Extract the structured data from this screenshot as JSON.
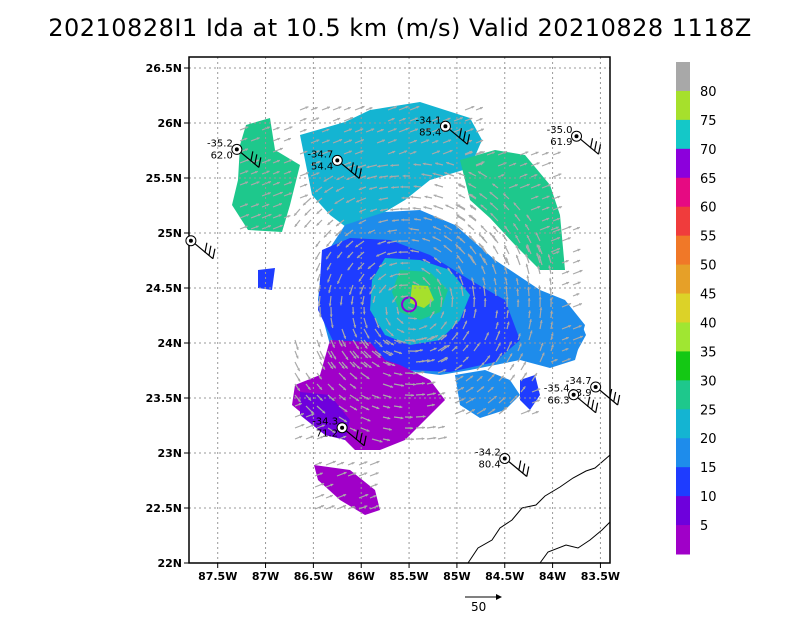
{
  "title": "20210828I1 Ida at 10.5 km (m/s) Valid 20210828  1118Z",
  "axes": {
    "lat_labels": [
      "26.5N",
      "26N",
      "25.5N",
      "25N",
      "24.5N",
      "24N",
      "23.5N",
      "23N",
      "22.5N",
      "22N"
    ],
    "lat_values": [
      26.5,
      26,
      25.5,
      25,
      24.5,
      24,
      23.5,
      23,
      22.5,
      22
    ],
    "lon_labels": [
      "87.5W",
      "87W",
      "86.5W",
      "86W",
      "85.5W",
      "85W",
      "84.5W",
      "84W",
      "83.5W"
    ],
    "lon_values": [
      -87.5,
      -87,
      -86.5,
      -86,
      -85.5,
      -85,
      -84.5,
      -84,
      -83.5
    ],
    "lon_range": [
      -87.8,
      -83.4
    ],
    "lat_range": [
      22,
      26.6
    ],
    "grid": true
  },
  "colorbar": {
    "labels": [
      "80",
      "75",
      "70",
      "65",
      "60",
      "55",
      "50",
      "45",
      "40",
      "35",
      "30",
      "25",
      "20",
      "15",
      "10",
      "5"
    ],
    "colors": [
      "#a8a8a8",
      "#a6e02c",
      "#14c8c8",
      "#8c00dc",
      "#e60a82",
      "#f03c3c",
      "#f07828",
      "#e6a028",
      "#dcd228",
      "#a0e632",
      "#14c814",
      "#1ec88c",
      "#14b4d2",
      "#1e8ceb",
      "#1e3cff",
      "#6e00dc",
      "#a000c8"
    ]
  },
  "vector_scale": {
    "label": "50"
  },
  "chart_data": {
    "type": "map",
    "title": "20210828I1 Ida at 10.5 km (m/s) Valid 20210828  1118Z",
    "field": "wind speed at 10.5 km (m/s)",
    "center_approx": {
      "lon": -85.5,
      "lat": 24.35
    },
    "observations": [
      {
        "lon": -87.3,
        "lat": 25.76,
        "temp": "-35.2",
        "value": "62.0"
      },
      {
        "lon": -86.25,
        "lat": 25.66,
        "temp": "-34.7",
        "value": "54.4"
      },
      {
        "lon": -85.12,
        "lat": 25.97,
        "temp": "-34.1",
        "value": "85.4"
      },
      {
        "lon": -83.75,
        "lat": 25.88,
        "temp": "-35.0",
        "value": "61.9"
      },
      {
        "lon": -87.78,
        "lat": 24.93,
        "temp": "",
        "value": ""
      },
      {
        "lon": -83.55,
        "lat": 23.6,
        "temp": "-34.7",
        "value": "63.9"
      },
      {
        "lon": -83.78,
        "lat": 23.53,
        "temp": "-35.4",
        "value": "66.3"
      },
      {
        "lon": -84.5,
        "lat": 22.95,
        "temp": "-34.2",
        "value": "80.4"
      },
      {
        "lon": -86.2,
        "lat": 23.23,
        "temp": "-34.3",
        "value": "71.2"
      }
    ]
  }
}
